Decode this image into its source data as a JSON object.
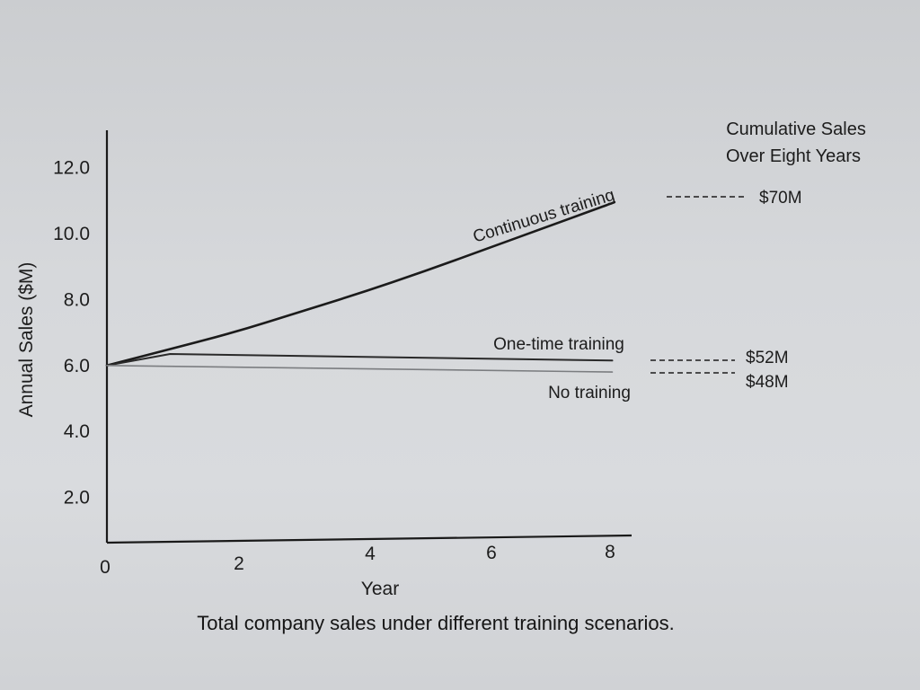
{
  "caption": "Total company sales under different training scenarios.",
  "chart_data": {
    "type": "line",
    "xlabel": "Year",
    "ylabel": "Annual Sales ($M)",
    "x_ticks": [
      0,
      2,
      4,
      6,
      8
    ],
    "y_ticks": [
      "2.0",
      "4.0",
      "6.0",
      "8.0",
      "10.0",
      "12.0"
    ],
    "xlim": [
      0,
      8
    ],
    "ylim": [
      0,
      13
    ],
    "grid": false,
    "series": [
      {
        "name": "Continuous training",
        "x": [
          0,
          1,
          2,
          3,
          4,
          5,
          6,
          7,
          8
        ],
        "y": [
          6.0,
          6.5,
          7.0,
          7.6,
          8.2,
          8.85,
          9.55,
          10.25,
          10.95
        ],
        "cumulative": "$70M"
      },
      {
        "name": "One-time training",
        "x": [
          0,
          1,
          8
        ],
        "y": [
          6.0,
          6.35,
          6.15
        ],
        "cumulative": "$52M"
      },
      {
        "name": "No training",
        "x": [
          0,
          8
        ],
        "y": [
          6.0,
          5.8
        ],
        "cumulative": "$48M"
      }
    ],
    "cumulative_header": [
      "Cumulative Sales",
      "Over Eight Years"
    ]
  }
}
